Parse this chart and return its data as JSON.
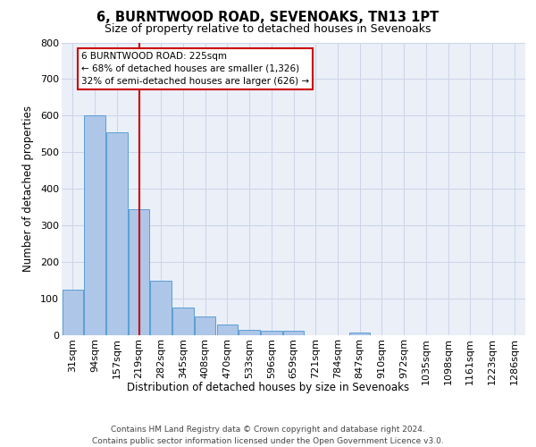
{
  "title": "6, BURNTWOOD ROAD, SEVENOAKS, TN13 1PT",
  "subtitle": "Size of property relative to detached houses in Sevenoaks",
  "xlabel": "Distribution of detached houses by size in Sevenoaks",
  "ylabel": "Number of detached properties",
  "bin_labels": [
    "31sqm",
    "94sqm",
    "157sqm",
    "219sqm",
    "282sqm",
    "345sqm",
    "408sqm",
    "470sqm",
    "533sqm",
    "596sqm",
    "659sqm",
    "721sqm",
    "784sqm",
    "847sqm",
    "910sqm",
    "972sqm",
    "1035sqm",
    "1098sqm",
    "1161sqm",
    "1223sqm",
    "1286sqm"
  ],
  "bar_values": [
    125,
    600,
    555,
    345,
    150,
    75,
    52,
    30,
    14,
    13,
    12,
    0,
    0,
    8,
    0,
    0,
    0,
    0,
    0,
    0,
    0
  ],
  "bar_color": "#aec6e8",
  "bar_edge_color": "#5a9fd4",
  "vline_color": "#cc0000",
  "vline_x": 3.0,
  "annotation_title": "6 BURNTWOOD ROAD: 225sqm",
  "annotation_line1": "← 68% of detached houses are smaller (1,326)",
  "annotation_line2": "32% of semi-detached houses are larger (626) →",
  "annotation_box_facecolor": "#ffffff",
  "annotation_box_edgecolor": "#cc0000",
  "ylim": [
    0,
    800
  ],
  "yticks": [
    0,
    100,
    200,
    300,
    400,
    500,
    600,
    700,
    800
  ],
  "grid_color": "#ccd5e8",
  "plot_bg_color": "#eaeff8",
  "footer_line1": "Contains HM Land Registry data © Crown copyright and database right 2024.",
  "footer_line2": "Contains public sector information licensed under the Open Government Licence v3.0."
}
